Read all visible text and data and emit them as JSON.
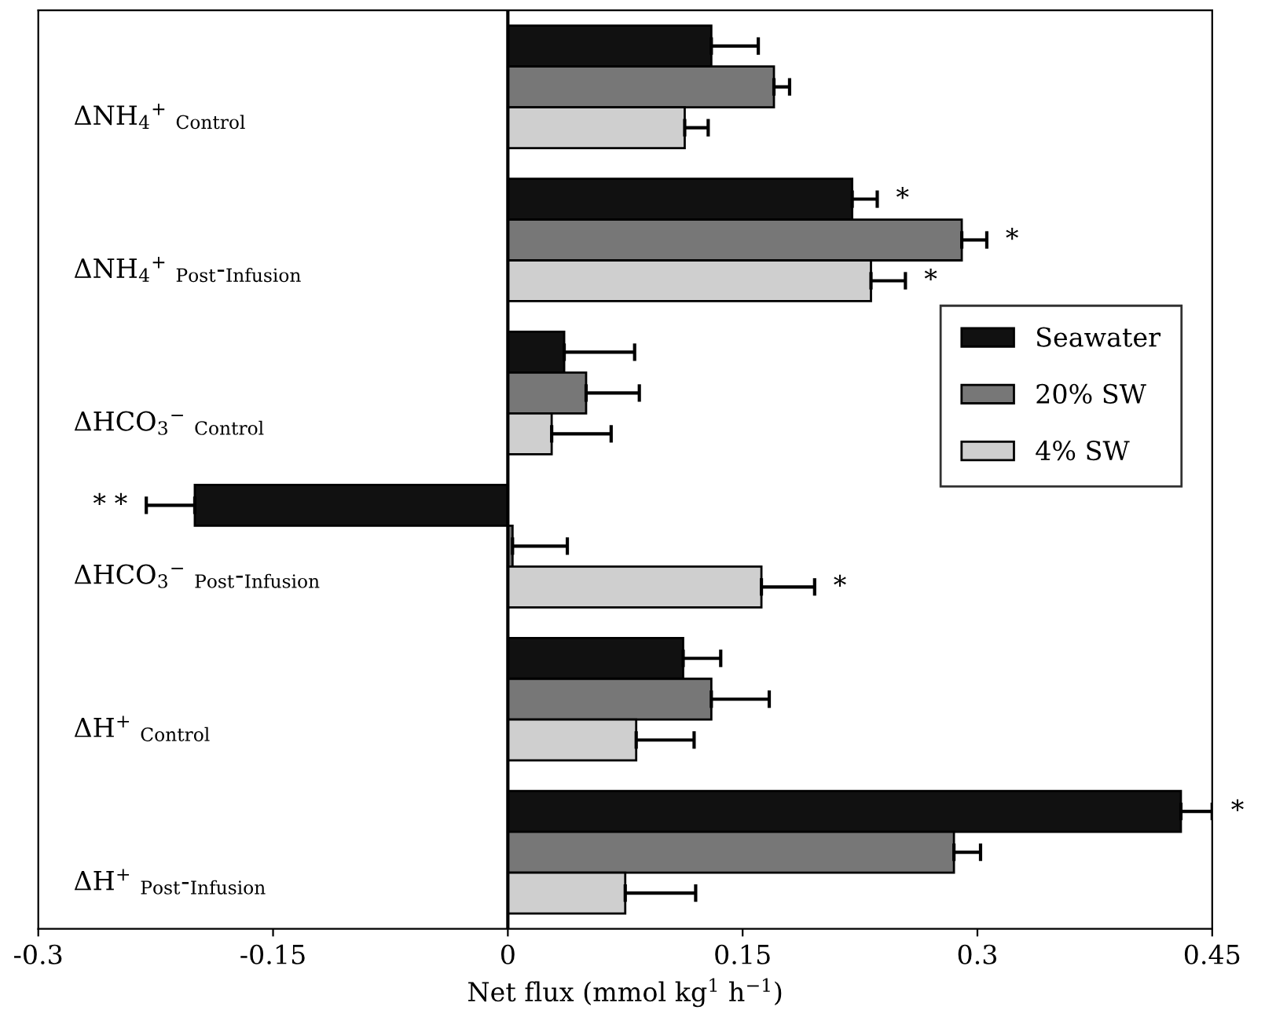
{
  "chart_data": {
    "type": "bar",
    "orientation": "horizontal",
    "xlabel": "Net flux (mmol kg$^{1}$ h$^{−1}$)",
    "categories": [
      "ΔNH$_{4}$$^{+}$ $_{Control}$",
      "ΔNH$_{4}$$^{+}$ $_{Post}$-$_{Infusion}$",
      "ΔHCO$_{3}$$^{−}$ $_{Control}$",
      "ΔHCO$_{3}$$^{−}$ $_{Post}$-$_{Infusion}$",
      "ΔH$^{+}$ $_{Control}$",
      "ΔH$^{+}$ $_{Post}$-$_{Infusion}$"
    ],
    "series": [
      {
        "name": "Seawater",
        "color": "#111111",
        "values": [
          0.13,
          0.22,
          0.036,
          -0.2,
          0.112,
          0.43
        ],
        "errors": [
          0.03,
          0.016,
          0.045,
          0.031,
          0.024,
          0.02
        ],
        "value_labels": [
          null,
          "*",
          null,
          "* *",
          null,
          "*"
        ]
      },
      {
        "name": "20% SW",
        "color": "#777777",
        "values": [
          0.17,
          0.29,
          0.05,
          0.003,
          0.13,
          0.285
        ],
        "errors": [
          0.01,
          0.016,
          0.034,
          0.035,
          0.037,
          0.017
        ],
        "value_labels": [
          null,
          "*",
          null,
          null,
          null,
          null
        ]
      },
      {
        "name": "4% SW",
        "color": "#cfcfcf",
        "values": [
          0.113,
          0.232,
          0.028,
          0.162,
          0.082,
          0.075
        ],
        "errors": [
          0.015,
          0.022,
          0.038,
          0.034,
          0.037,
          0.045
        ],
        "value_labels": [
          null,
          "*",
          null,
          "*",
          null,
          null
        ]
      }
    ],
    "xlim": [
      -0.3,
      0.45
    ],
    "xticks": [
      -0.3,
      -0.15,
      0,
      0.15,
      0.3,
      0.45
    ],
    "ref_lines": [
      {
        "axis": "x",
        "value": 0,
        "color": "#000000"
      }
    ],
    "legend": "right",
    "grid": false
  }
}
